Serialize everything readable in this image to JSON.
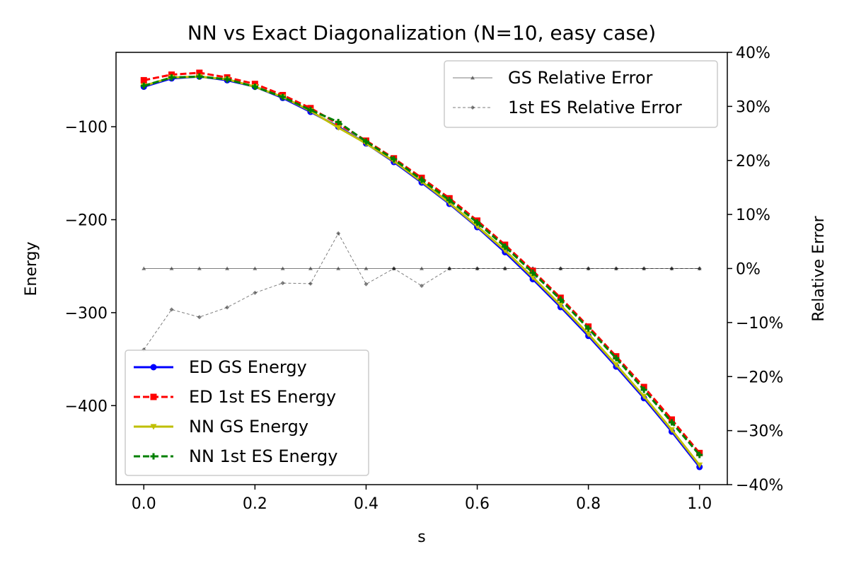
{
  "chart_data": {
    "type": "line",
    "title": "NN vs Exact Diagonalization (N=10, easy case)",
    "xlabel": "s",
    "ylabel": "Energy",
    "y2label": "Relative Error",
    "xlim": [
      -0.05,
      1.05
    ],
    "ylim": [
      -485,
      -20
    ],
    "y2lim": [
      -40,
      40
    ],
    "xticks": [
      0.0,
      0.2,
      0.4,
      0.6,
      0.8,
      1.0
    ],
    "xtick_labels": [
      "0.0",
      "0.2",
      "0.4",
      "0.6",
      "0.8",
      "1.0"
    ],
    "yticks": [
      -100,
      -200,
      -300,
      -400
    ],
    "ytick_labels": [
      "−100",
      "−200",
      "−300",
      "−400"
    ],
    "y2ticks": [
      40,
      30,
      20,
      10,
      0,
      -10,
      -20,
      -30,
      -40
    ],
    "y2tick_labels": [
      "40%",
      "30%",
      "20%",
      "10%",
      "0%",
      "−10%",
      "−20%",
      "−30%",
      "−40%"
    ],
    "x": [
      0.0,
      0.05,
      0.1,
      0.15,
      0.2,
      0.25,
      0.3,
      0.35,
      0.4,
      0.45,
      0.5,
      0.55,
      0.6,
      0.65,
      0.7,
      0.75,
      0.8,
      0.85,
      0.9,
      0.95,
      1.0
    ],
    "series": [
      {
        "name": "ED GS Energy",
        "axis": "left",
        "color": "#0000ff",
        "dash": "solid",
        "marker": "circle",
        "values": [
          -57,
          -48,
          -46,
          -50,
          -57,
          -69,
          -84,
          -100,
          -118,
          -138,
          -160,
          -183,
          -208,
          -235,
          -264,
          -294,
          -325,
          -358,
          -392,
          -428,
          -466
        ]
      },
      {
        "name": "ED 1st ES Energy",
        "axis": "left",
        "color": "#ff0000",
        "dash": "dashed",
        "marker": "square",
        "values": [
          -50,
          -44,
          -42,
          -47,
          -54,
          -66,
          -80,
          -97,
          -115,
          -134,
          -155,
          -177,
          -201,
          -227,
          -255,
          -284,
          -315,
          -347,
          -380,
          -415,
          -451
        ]
      },
      {
        "name": "NN GS Energy",
        "axis": "left",
        "color": "#bfbf00",
        "dash": "solid",
        "marker": "triangle-down",
        "values": [
          -56,
          -47,
          -46,
          -49,
          -57,
          -68,
          -83,
          -101,
          -118,
          -137,
          -159,
          -182,
          -207,
          -233,
          -262,
          -292,
          -323,
          -356,
          -390,
          -426,
          -464
        ]
      },
      {
        "name": "NN 1st ES Energy",
        "axis": "left",
        "color": "#008000",
        "dash": "dashed",
        "marker": "plus",
        "values": [
          -56,
          -47,
          -46,
          -49,
          -57,
          -68,
          -82,
          -95,
          -116,
          -135,
          -157,
          -179,
          -203,
          -229,
          -257,
          -286,
          -317,
          -349,
          -383,
          -418,
          -453
        ]
      },
      {
        "name": "GS Relative Error",
        "axis": "right",
        "color": "#000000",
        "dash": "solid",
        "marker": "triangle-up",
        "opacity": 0.5,
        "thin": true,
        "values": [
          0,
          0,
          0,
          0,
          0,
          0,
          0,
          0,
          0,
          0,
          0,
          0,
          0,
          0,
          0,
          0,
          0,
          0,
          0,
          0,
          0
        ]
      },
      {
        "name": "1st ES Relative Error",
        "axis": "right",
        "color": "#000000",
        "dash": "dashed",
        "marker": "diamond",
        "opacity": 0.5,
        "thin": true,
        "values": [
          -15,
          -7.6,
          -9,
          -7.2,
          -4.5,
          -2.7,
          -2.8,
          6.5,
          -2.9,
          0,
          -3.2,
          0,
          0,
          0,
          0,
          0,
          0,
          0,
          0,
          0,
          0
        ]
      }
    ],
    "legends": [
      {
        "position": "lower-left",
        "entries": [
          "ED GS Energy",
          "ED 1st ES Energy",
          "NN GS Energy",
          "NN 1st ES Energy"
        ]
      },
      {
        "position": "upper-right",
        "entries": [
          "GS Relative Error",
          "1st ES Relative Error"
        ]
      }
    ]
  }
}
